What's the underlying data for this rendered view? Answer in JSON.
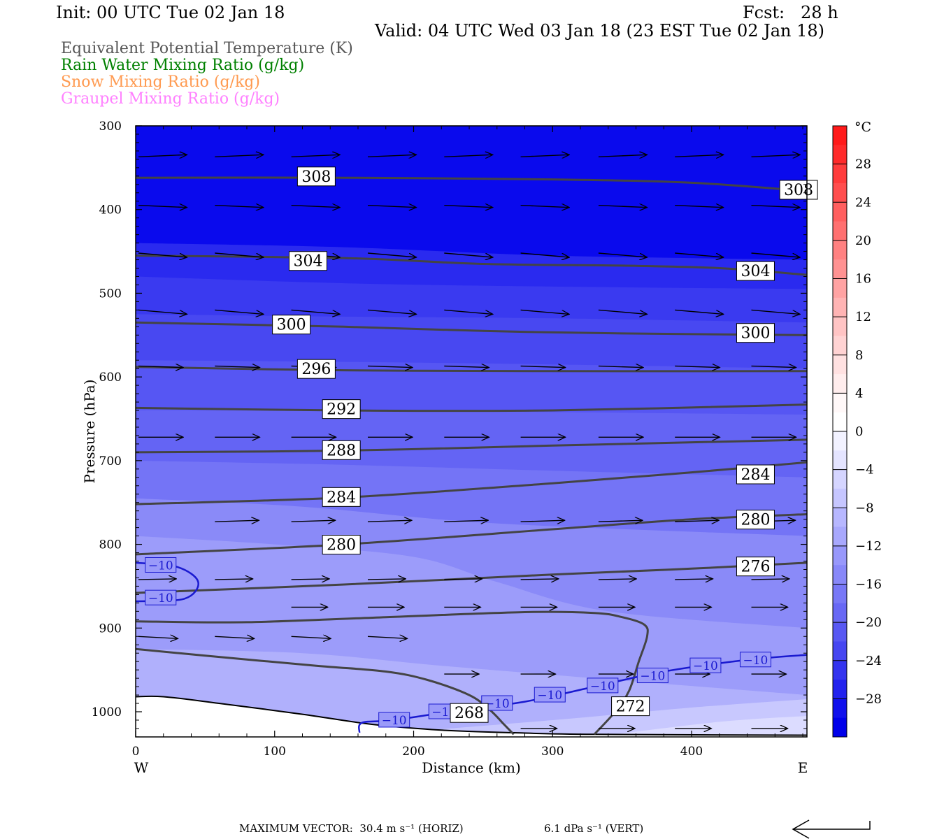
{
  "header": {
    "init": "Init: 00 UTC Tue 02 Jan 18",
    "fcst": "Fcst:   28 h",
    "valid": "Valid: 04 UTC Wed 03 Jan 18 (23 EST Tue 02 Jan 18)"
  },
  "legend": [
    {
      "label": "Equivalent Potential Temperature (K)",
      "color": "#555555"
    },
    {
      "label": "Rain Water Mixing Ratio (g/kg)",
      "color": "#008000"
    },
    {
      "label": "Snow Mixing Ratio (g/kg)",
      "color": "#ff9a50"
    },
    {
      "label": "Graupel Mixing Ratio (g/kg)",
      "color": "#ff80ff"
    }
  ],
  "footer": {
    "max_vector": "MAXIMUM VECTOR:  30.4 m s⁻¹ (HORIZ)",
    "vert": "6.1 dPa s⁻¹ (VERT)"
  },
  "chart_data": {
    "type": "heatmap",
    "xlabel": "Distance (km)",
    "ylabel": "Pressure (hPa)",
    "xlim": [
      0,
      483
    ],
    "ylim": [
      1030,
      300
    ],
    "x_ticks": [
      0,
      100,
      200,
      300,
      400
    ],
    "y_ticks": [
      300,
      400,
      500,
      600,
      700,
      800,
      900,
      1000
    ],
    "x_end_labels": {
      "left": "W",
      "right": "E"
    },
    "colorbar": {
      "unit": "°C",
      "ticks": [
        28,
        24,
        20,
        16,
        12,
        8,
        4,
        0,
        -4,
        -8,
        -12,
        -16,
        -20,
        -24,
        -28
      ],
      "tick_labels": [
        "28",
        "24",
        "20",
        "16",
        "12",
        "8",
        "4",
        "0",
        "−4",
        "−8",
        "−12",
        "−16",
        "−20",
        "−24",
        "−28"
      ],
      "bins": [
        {
          "from": 30,
          "to": 32,
          "color": "#ff1a1a"
        },
        {
          "from": 28,
          "to": 30,
          "color": "#ff2a2a"
        },
        {
          "from": 26,
          "to": 28,
          "color": "#ff3c3c"
        },
        {
          "from": 24,
          "to": 26,
          "color": "#ff4e4e"
        },
        {
          "from": 22,
          "to": 24,
          "color": "#ff5f5f"
        },
        {
          "from": 20,
          "to": 22,
          "color": "#ff7070"
        },
        {
          "from": 18,
          "to": 20,
          "color": "#ff8181"
        },
        {
          "from": 16,
          "to": 18,
          "color": "#ff9292"
        },
        {
          "from": 14,
          "to": 16,
          "color": "#ffa3a3"
        },
        {
          "from": 12,
          "to": 14,
          "color": "#ffb4b4"
        },
        {
          "from": 10,
          "to": 12,
          "color": "#ffc4c4"
        },
        {
          "from": 8,
          "to": 10,
          "color": "#ffd3d3"
        },
        {
          "from": 6,
          "to": 8,
          "color": "#ffe1e1"
        },
        {
          "from": 4,
          "to": 6,
          "color": "#ffeded"
        },
        {
          "from": 2,
          "to": 4,
          "color": "#fff8f8"
        },
        {
          "from": 0,
          "to": 2,
          "color": "#ffffff"
        },
        {
          "from": -2,
          "to": 0,
          "color": "#f2f2ff"
        },
        {
          "from": -4,
          "to": -2,
          "color": "#e4e4ff"
        },
        {
          "from": -6,
          "to": -4,
          "color": "#d5d5ff"
        },
        {
          "from": -8,
          "to": -6,
          "color": "#c6c6ff"
        },
        {
          "from": -10,
          "to": -8,
          "color": "#b7b7ff"
        },
        {
          "from": -12,
          "to": -10,
          "color": "#a8a8fd"
        },
        {
          "from": -14,
          "to": -12,
          "color": "#9898fb"
        },
        {
          "from": -16,
          "to": -14,
          "color": "#8888f9"
        },
        {
          "from": -18,
          "to": -16,
          "color": "#7878f7"
        },
        {
          "from": -20,
          "to": -18,
          "color": "#6868f5"
        },
        {
          "from": -22,
          "to": -20,
          "color": "#5858f3"
        },
        {
          "from": -24,
          "to": -22,
          "color": "#4646f1"
        },
        {
          "from": -26,
          "to": -24,
          "color": "#3434ef"
        },
        {
          "from": -28,
          "to": -26,
          "color": "#2222ee"
        },
        {
          "from": -30,
          "to": -28,
          "color": "#1010ec"
        },
        {
          "from": -32,
          "to": -30,
          "color": "#0000ea"
        }
      ]
    },
    "temperature_bands": [
      {
        "top": [
          [
            0,
            300
          ],
          [
            483,
            300
          ]
        ],
        "color": "#0a0aed"
      },
      {
        "top": [
          [
            0,
            440
          ],
          [
            150,
            445
          ],
          [
            300,
            455
          ],
          [
            483,
            460
          ]
        ],
        "color": "#2a2aef"
      },
      {
        "top": [
          [
            0,
            480
          ],
          [
            150,
            488
          ],
          [
            300,
            492
          ],
          [
            483,
            495
          ]
        ],
        "color": "#3a3af0"
      },
      {
        "top": [
          [
            0,
            525
          ],
          [
            150,
            528
          ],
          [
            300,
            530
          ],
          [
            483,
            535
          ]
        ],
        "color": "#4848f1"
      },
      {
        "top": [
          [
            0,
            580
          ],
          [
            150,
            582
          ],
          [
            300,
            585
          ],
          [
            483,
            590
          ]
        ],
        "color": "#5656f3"
      },
      {
        "top": [
          [
            0,
            640
          ],
          [
            150,
            640
          ],
          [
            300,
            642
          ],
          [
            483,
            645
          ]
        ],
        "color": "#6464f4"
      },
      {
        "top": [
          [
            0,
            700
          ],
          [
            150,
            705
          ],
          [
            300,
            712
          ],
          [
            483,
            720
          ]
        ],
        "color": "#7474f6"
      },
      {
        "top": [
          [
            0,
            745
          ],
          [
            120,
            755
          ],
          [
            260,
            775
          ],
          [
            483,
            790
          ]
        ],
        "color": "#8a8af8"
      },
      {
        "top": [
          [
            0,
            790
          ],
          [
            100,
            800
          ],
          [
            200,
            815
          ],
          [
            260,
            845
          ],
          [
            340,
            880
          ],
          [
            483,
            900
          ]
        ],
        "color": "#9c9cfa"
      },
      {
        "top": [
          [
            0,
            925
          ],
          [
            120,
            930
          ],
          [
            220,
            945
          ],
          [
            330,
            960
          ],
          [
            483,
            980
          ]
        ],
        "color": "#b0b0fc"
      },
      {
        "top": [
          [
            150,
            1030
          ],
          [
            300,
            1010
          ],
          [
            400,
            995
          ],
          [
            483,
            985
          ]
        ],
        "color": "#c8c8fe"
      },
      {
        "top": [
          [
            330,
            1030
          ],
          [
            420,
            1012
          ],
          [
            483,
            1005
          ]
        ],
        "color": "#dcdcff"
      }
    ],
    "terrain": [
      [
        0,
        982
      ],
      [
        20,
        982
      ],
      [
        60,
        990
      ],
      [
        120,
        1003
      ],
      [
        170,
        1015
      ],
      [
        220,
        1022
      ],
      [
        270,
        1025
      ],
      [
        330,
        1027
      ],
      [
        483,
        1028
      ]
    ],
    "theta_e_contours": [
      {
        "level": 308,
        "points": [
          [
            0,
            362
          ],
          [
            150,
            362
          ],
          [
            300,
            364
          ],
          [
            400,
            368
          ],
          [
            483,
            378
          ]
        ],
        "labels": [
          [
            130,
            360
          ],
          [
            477,
            376
          ]
        ]
      },
      {
        "level": 304,
        "points": [
          [
            0,
            455
          ],
          [
            150,
            458
          ],
          [
            250,
            465
          ],
          [
            350,
            467
          ],
          [
            420,
            470
          ],
          [
            483,
            478
          ]
        ],
        "labels": [
          [
            124,
            461
          ],
          [
            446,
            473
          ]
        ]
      },
      {
        "level": 300,
        "points": [
          [
            0,
            535
          ],
          [
            150,
            540
          ],
          [
            250,
            545
          ],
          [
            350,
            548
          ],
          [
            483,
            550
          ]
        ],
        "labels": [
          [
            112,
            537
          ],
          [
            446,
            547
          ]
        ]
      },
      {
        "level": 296,
        "points": [
          [
            0,
            588
          ],
          [
            150,
            592
          ],
          [
            300,
            593
          ],
          [
            483,
            593
          ]
        ],
        "labels": [
          [
            130,
            590
          ]
        ]
      },
      {
        "level": 292,
        "points": [
          [
            0,
            637
          ],
          [
            150,
            640
          ],
          [
            300,
            640
          ],
          [
            483,
            633
          ]
        ],
        "labels": [
          [
            148,
            638
          ]
        ]
      },
      {
        "level": 288,
        "points": [
          [
            0,
            690
          ],
          [
            150,
            688
          ],
          [
            300,
            682
          ],
          [
            483,
            675
          ]
        ],
        "labels": [
          [
            148,
            687
          ]
        ]
      },
      {
        "level": 284,
        "points": [
          [
            0,
            752
          ],
          [
            150,
            744
          ],
          [
            300,
            727
          ],
          [
            400,
            714
          ],
          [
            483,
            702
          ]
        ],
        "labels": [
          [
            148,
            743
          ],
          [
            446,
            716
          ]
        ]
      },
      {
        "level": 280,
        "points": [
          [
            0,
            812
          ],
          [
            150,
            800
          ],
          [
            300,
            782
          ],
          [
            400,
            770
          ],
          [
            483,
            764
          ]
        ],
        "labels": [
          [
            148,
            800
          ],
          [
            446,
            770
          ]
        ]
      },
      {
        "level": 276,
        "points": [
          [
            0,
            858
          ],
          [
            150,
            848
          ],
          [
            300,
            836
          ],
          [
            400,
            829
          ],
          [
            483,
            822
          ]
        ],
        "labels": [
          [
            446,
            826
          ]
        ]
      },
      {
        "level": 272,
        "points": [
          [
            0,
            892
          ],
          [
            80,
            893
          ],
          [
            180,
            887
          ],
          [
            280,
            881
          ],
          [
            330,
            882
          ],
          [
            350,
            887
          ],
          [
            366,
            896
          ],
          [
            368,
            910
          ],
          [
            362,
            940
          ],
          [
            355,
            975
          ],
          [
            345,
            1000
          ],
          [
            330,
            1027
          ]
        ],
        "labels": [
          [
            356,
            993
          ]
        ]
      },
      {
        "level": 268,
        "points": [
          [
            0,
            925
          ],
          [
            50,
            933
          ],
          [
            130,
            945
          ],
          [
            180,
            952
          ],
          [
            210,
            962
          ],
          [
            240,
            980
          ],
          [
            255,
            998
          ],
          [
            265,
            1015
          ],
          [
            272,
            1027
          ]
        ],
        "labels": [
          [
            240,
            1001
          ]
        ]
      }
    ],
    "temp_isotherms": [
      {
        "level": -10,
        "label": "−10",
        "points": [
          [
            0,
            822
          ],
          [
            30,
            827
          ],
          [
            45,
            845
          ],
          [
            35,
            865
          ],
          [
            0,
            868
          ]
        ],
        "labels": [
          [
            18,
            825
          ],
          [
            18,
            864
          ]
        ]
      },
      {
        "level": -10,
        "label": "−10",
        "points": [
          [
            161,
            1025
          ],
          [
            163,
            1013
          ],
          [
            185,
            1010
          ],
          [
            230,
            999
          ],
          [
            280,
            988
          ],
          [
            330,
            970
          ],
          [
            380,
            952
          ],
          [
            440,
            938
          ],
          [
            483,
            932
          ]
        ],
        "labels": [
          [
            186,
            1010
          ],
          [
            222,
            1000
          ],
          [
            260,
            990
          ],
          [
            298,
            980
          ],
          [
            336,
            969
          ],
          [
            372,
            957
          ],
          [
            410,
            945
          ],
          [
            446,
            938
          ]
        ]
      }
    ],
    "wind_rows": [
      {
        "p": 337,
        "x": [
          0,
          55,
          110,
          165,
          220,
          275,
          331,
          386,
          441
        ],
        "len": 38,
        "tilt": -3
      },
      {
        "p": 395,
        "x": [
          0,
          55,
          110,
          165,
          220,
          275,
          331,
          386,
          441
        ],
        "len": 38,
        "tilt": 3
      },
      {
        "p": 452,
        "x": [
          0,
          55,
          110,
          165,
          220,
          275,
          331,
          386,
          441
        ],
        "len": 38,
        "tilt": 6
      },
      {
        "p": 520,
        "x": [
          0,
          55,
          110,
          165,
          220,
          275,
          331,
          386,
          441
        ],
        "len": 38,
        "tilt": 6
      },
      {
        "p": 587,
        "x": [
          0,
          55,
          110,
          165,
          220,
          275,
          331,
          386,
          441
        ],
        "len": 33,
        "tilt": 2
      },
      {
        "p": 672,
        "x": [
          0,
          55,
          110,
          165,
          220,
          275,
          331,
          386,
          441
        ],
        "len": 33,
        "tilt": 0
      },
      {
        "p": 773,
        "x": [
          55,
          110,
          165,
          220,
          275,
          331,
          386,
          441
        ],
        "len": 32,
        "tilt": -2
      },
      {
        "p": 842,
        "x": [
          0,
          55,
          110,
          165,
          220,
          275,
          331,
          386,
          441
        ],
        "len": 24,
        "tilt": -1
      },
      {
        "p": 875,
        "x": [
          110,
          165,
          220,
          275,
          331,
          386,
          441
        ],
        "len": 22,
        "tilt": 0
      },
      {
        "p": 910,
        "x": [
          0,
          55,
          110,
          165
        ],
        "len": 26,
        "tilt": 3
      },
      {
        "p": 955,
        "x": [
          220,
          275,
          331,
          386,
          441
        ],
        "len": 20,
        "tilt": 0
      },
      {
        "p": 1020,
        "x": [
          275,
          331,
          386,
          441
        ],
        "len": 22,
        "tilt": 0
      }
    ]
  }
}
